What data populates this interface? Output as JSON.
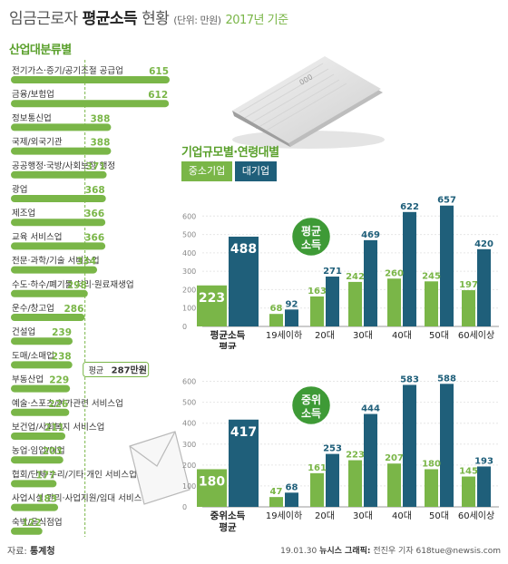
{
  "title": {
    "part1": "임금근로자",
    "part2": "평균소득",
    "part3": "현황",
    "unit": "(단위: 만원)",
    "year": "2017년 기준"
  },
  "industry_section": {
    "title": "산업대분류별"
  },
  "size_age_section": {
    "title": "기업규모별·연령대별"
  },
  "legend": {
    "small": "중소기업",
    "large": "대기업"
  },
  "colors": {
    "green": "#7ab648",
    "navy": "#1f5f7a",
    "label_green": "#7ab648",
    "circle": "#3e9a36"
  },
  "source": {
    "label": "자료:",
    "name": "통계청"
  },
  "credit": {
    "date": "19.01.30",
    "agency": "뉴시스 그래픽:",
    "name": "전진우 기자 618tue@newsis.com"
  },
  "chart_data": [
    {
      "type": "bar",
      "orientation": "horizontal",
      "title": "산업대분류별",
      "categories": [
        "전기가스·증기/공기조절 공급업",
        "금융/보험업",
        "정보통신업",
        "국제/외국기관",
        "공공행정·국방/사회보장 행정",
        "광업",
        "제조업",
        "교육 서비스업",
        "전문·과학/기술 서비스업",
        "수도·하수/폐기물 처리·원료재생업",
        "운수/창고업",
        "건설업",
        "도매/소매업",
        "부동산업",
        "예술·스포츠/여가관련 서비스업",
        "보건업/사회복지 서비스업",
        "농업·임업/어업",
        "협회/단체·수리/기타 개인 서비스업",
        "사업시설 관리·사업지원/임대 서비스업",
        "숙박/음식점업"
      ],
      "values": [
        615,
        612,
        388,
        388,
        371,
        368,
        366,
        366,
        334,
        298,
        286,
        239,
        238,
        229,
        226,
        211,
        203,
        177,
        183,
        122
      ],
      "reference_line": {
        "label": "평균",
        "value": 287,
        "value_text": "287만원"
      }
    },
    {
      "type": "bar",
      "title": "평균소득",
      "categories": [
        "평균소득 평균",
        "19세이하",
        "20대",
        "30대",
        "40대",
        "50대",
        "60세이상"
      ],
      "series": [
        {
          "name": "중소기업",
          "values": [
            223,
            68,
            163,
            242,
            260,
            245,
            197
          ]
        },
        {
          "name": "대기업",
          "values": [
            488,
            92,
            271,
            469,
            622,
            657,
            420
          ]
        }
      ],
      "yticks": [
        0,
        100,
        200,
        300,
        400,
        500,
        600
      ],
      "ylim": [
        0,
        700
      ],
      "grid": true,
      "badge": "평균 소득"
    },
    {
      "type": "bar",
      "title": "중위소득",
      "categories": [
        "중위소득 평균",
        "19세이하",
        "20대",
        "30대",
        "40대",
        "50대",
        "60세이상"
      ],
      "series": [
        {
          "name": "중소기업",
          "values": [
            180,
            47,
            161,
            223,
            207,
            180,
            145
          ]
        },
        {
          "name": "대기업",
          "values": [
            417,
            68,
            253,
            444,
            583,
            588,
            193
          ]
        }
      ],
      "yticks": [
        0,
        100,
        200,
        300,
        400,
        500,
        600
      ],
      "ylim": [
        0,
        650
      ],
      "grid": true,
      "badge": "중위 소득"
    }
  ]
}
